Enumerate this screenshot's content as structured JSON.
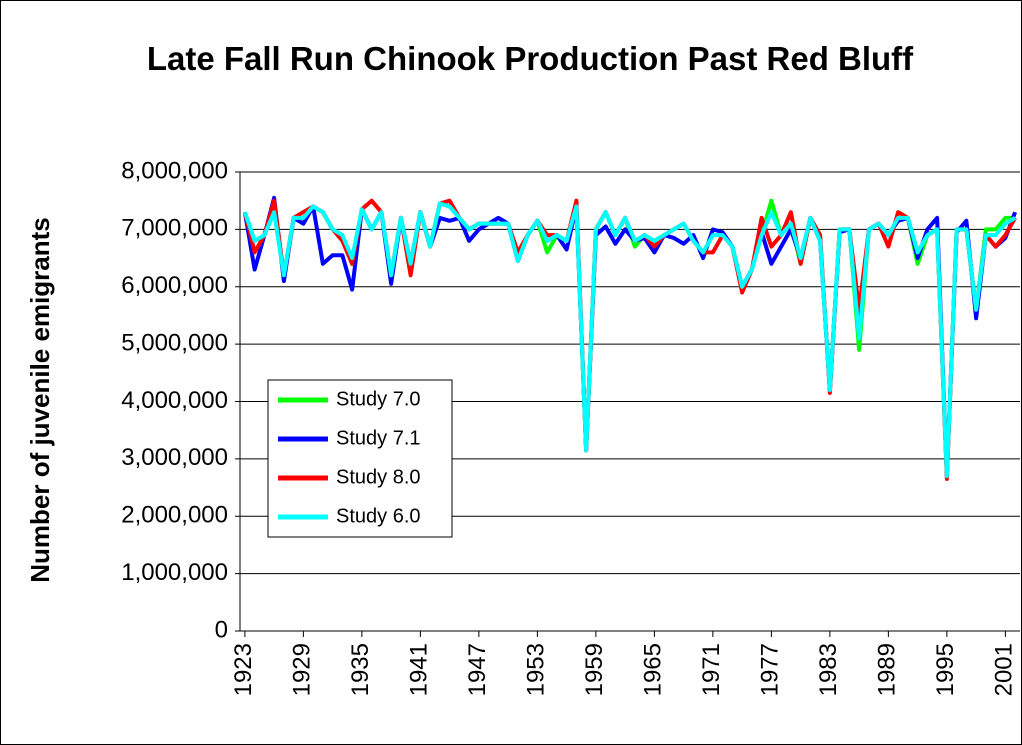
{
  "chart_data": {
    "type": "line",
    "title": "Late Fall Run Chinook Production Past Red Bluff",
    "y_label": "Number of juvenile emigrants",
    "categories": [
      "1923",
      null,
      null,
      null,
      null,
      null,
      "1929",
      null,
      null,
      null,
      null,
      null,
      "1935",
      null,
      null,
      null,
      null,
      null,
      "1941",
      null,
      null,
      null,
      null,
      null,
      "1947",
      null,
      null,
      null,
      null,
      null,
      "1953",
      null,
      null,
      null,
      null,
      null,
      "1959",
      null,
      null,
      null,
      null,
      null,
      "1965",
      null,
      null,
      null,
      null,
      null,
      "1971",
      null,
      null,
      null,
      null,
      null,
      "1977",
      null,
      null,
      null,
      null,
      null,
      "1983",
      null,
      null,
      null,
      null,
      null,
      "1989",
      null,
      null,
      null,
      null,
      null,
      "1995",
      null,
      null,
      null,
      null,
      null,
      "2001",
      null
    ],
    "series": [
      {
        "name": "Study 7.0",
        "color": "#00ff00",
        "values": [
          7300000,
          6800000,
          6900000,
          7300000,
          6200000,
          7200000,
          7200000,
          7400000,
          7300000,
          7000000,
          6900000,
          6400000,
          7350000,
          7000000,
          7300000,
          6200000,
          7200000,
          6400000,
          7300000,
          6700000,
          7450000,
          7400000,
          7200000,
          7000000,
          7100000,
          7100000,
          7100000,
          7100000,
          6450000,
          6900000,
          7150000,
          6600000,
          6900000,
          6800000,
          7400000,
          3150000,
          7000000,
          7300000,
          6900000,
          7200000,
          6700000,
          6900000,
          6800000,
          6900000,
          7000000,
          7100000,
          6800000,
          6600000,
          6900000,
          6900000,
          6700000,
          6000000,
          6300000,
          6900000,
          7500000,
          6900000,
          7100000,
          6400000,
          7200000,
          6800000,
          4200000,
          7000000,
          7000000,
          4900000,
          7000000,
          7100000,
          6900000,
          7200000,
          7200000,
          6400000,
          6900000,
          7000000,
          2700000,
          7000000,
          7000000,
          5600000,
          7000000,
          7000000,
          7200000,
          7200000
        ]
      },
      {
        "name": "Study 7.1",
        "color": "#0000ff",
        "values": [
          7300000,
          6300000,
          6900000,
          7550000,
          6100000,
          7200000,
          7100000,
          7400000,
          6400000,
          6550000,
          6550000,
          5950000,
          7350000,
          7000000,
          7300000,
          6050000,
          7200000,
          6400000,
          7300000,
          6700000,
          7200000,
          7150000,
          7200000,
          6800000,
          7000000,
          7100000,
          7200000,
          7100000,
          6450000,
          6900000,
          7150000,
          6800000,
          6900000,
          6650000,
          7400000,
          3150000,
          6900000,
          7050000,
          6750000,
          7000000,
          6800000,
          6850000,
          6600000,
          6900000,
          6850000,
          6750000,
          6900000,
          6500000,
          7000000,
          6950000,
          6700000,
          6000000,
          6300000,
          6950000,
          6400000,
          6700000,
          7000000,
          6500000,
          7200000,
          6800000,
          4200000,
          6950000,
          7000000,
          5200000,
          7000000,
          7100000,
          6900000,
          7150000,
          7200000,
          6500000,
          7000000,
          7200000,
          2700000,
          6950000,
          7150000,
          5450000,
          6900000,
          6700000,
          6850000,
          7300000
        ]
      },
      {
        "name": "Study 8.0",
        "color": "#ff0000",
        "values": [
          7300000,
          6600000,
          6900000,
          7500000,
          6200000,
          7200000,
          7300000,
          7400000,
          7300000,
          7000000,
          6800000,
          6400000,
          7350000,
          7500000,
          7300000,
          6200000,
          7200000,
          6200000,
          7300000,
          6700000,
          7450000,
          7500000,
          7200000,
          7000000,
          7100000,
          7100000,
          7100000,
          7100000,
          6600000,
          6900000,
          7150000,
          6900000,
          6900000,
          6800000,
          7500000,
          3150000,
          7000000,
          7300000,
          6900000,
          7200000,
          6800000,
          6900000,
          6700000,
          6900000,
          7000000,
          7100000,
          6800000,
          6600000,
          6600000,
          6900000,
          6700000,
          5900000,
          6300000,
          7200000,
          6700000,
          6900000,
          7300000,
          6400000,
          7200000,
          6900000,
          4150000,
          7000000,
          7000000,
          5600000,
          7000000,
          7100000,
          6700000,
          7300000,
          7200000,
          6600000,
          6900000,
          7000000,
          2650000,
          7000000,
          7000000,
          5600000,
          6900000,
          6700000,
          6900000,
          7200000
        ]
      },
      {
        "name": "Study 6.0",
        "color": "#00ffff",
        "values": [
          7300000,
          6800000,
          6900000,
          7300000,
          6200000,
          7200000,
          7200000,
          7400000,
          7300000,
          7000000,
          6900000,
          6500000,
          7350000,
          7000000,
          7300000,
          6200000,
          7200000,
          6400000,
          7300000,
          6700000,
          7450000,
          7400000,
          7200000,
          7000000,
          7100000,
          7100000,
          7100000,
          7100000,
          6450000,
          6900000,
          7150000,
          6800000,
          6900000,
          6800000,
          7400000,
          3150000,
          7000000,
          7300000,
          6900000,
          7200000,
          6800000,
          6900000,
          6800000,
          6900000,
          7000000,
          7100000,
          6800000,
          6600000,
          6900000,
          6900000,
          6700000,
          6000000,
          6300000,
          6900000,
          7300000,
          6900000,
          7100000,
          6500000,
          7200000,
          6800000,
          4200000,
          7000000,
          7000000,
          5100000,
          7000000,
          7100000,
          6900000,
          7200000,
          7200000,
          6600000,
          6900000,
          7000000,
          2700000,
          7000000,
          7000000,
          5600000,
          6900000,
          6900000,
          7100000,
          7200000
        ]
      }
    ],
    "ylim": [
      0,
      8000000
    ],
    "yticks": [
      0,
      {
        "value": 1000000,
        "label": "1,000,000"
      },
      {
        "value": 2000000,
        "label": "2,000,000"
      },
      {
        "value": 3000000,
        "label": "3,000,000"
      },
      {
        "value": 4000000,
        "label": "4,000,000"
      },
      {
        "value": 5000000,
        "label": "5,000,000"
      },
      {
        "value": 6000000,
        "label": "6,000,000"
      },
      {
        "value": 7000000,
        "label": "7,000,000"
      },
      {
        "value": 8000000,
        "label": "8,000,000"
      }
    ],
    "grid": true,
    "legend": "lower left"
  }
}
